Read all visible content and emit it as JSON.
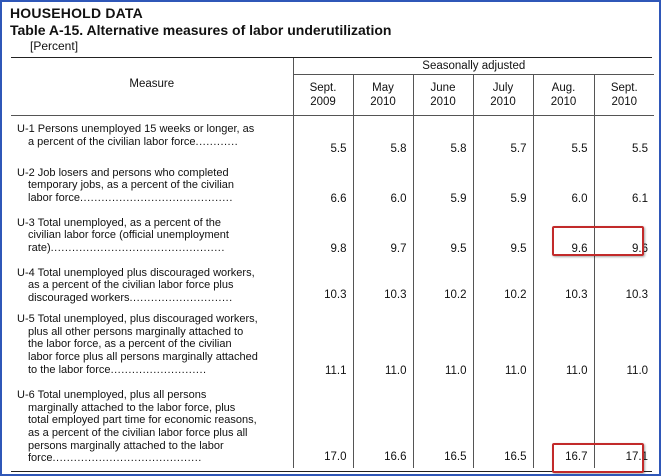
{
  "header": {
    "title": "HOUSEHOLD DATA",
    "subtitle": "Table A-15. Alternative measures of labor underutilization",
    "unit": "[Percent]"
  },
  "table": {
    "measure_header": "Measure",
    "group_header": "Seasonally adjusted",
    "columns": [
      {
        "month": "Sept.",
        "year": "2009"
      },
      {
        "month": "May",
        "year": "2010"
      },
      {
        "month": "June",
        "year": "2010"
      },
      {
        "month": "July",
        "year": "2010"
      },
      {
        "month": "Aug.",
        "year": "2010"
      },
      {
        "month": "Sept.",
        "year": "2010"
      }
    ],
    "rows": [
      {
        "lines": [
          "U-1 Persons unemployed 15 weeks or longer, as",
          "a percent of the civilian labor force"
        ],
        "dots": "............",
        "values": [
          "5.5",
          "5.8",
          "5.8",
          "5.7",
          "5.5",
          "5.5"
        ]
      },
      {
        "lines": [
          "U-2 Job losers and persons who completed",
          "temporary jobs, as a percent of the civilian",
          "labor force"
        ],
        "dots": "...........................................",
        "values": [
          "6.6",
          "6.0",
          "5.9",
          "5.9",
          "6.0",
          "6.1"
        ]
      },
      {
        "lines": [
          "U-3 Total unemployed, as a percent of the",
          "civilian labor force (official unemployment",
          "rate)"
        ],
        "dots": ".................................................",
        "values": [
          "9.8",
          "9.7",
          "9.5",
          "9.5",
          "9.6",
          "9.6"
        ]
      },
      {
        "lines": [
          "U-4 Total unemployed plus discouraged workers,",
          "as a percent of the civilian labor force plus",
          "discouraged workers"
        ],
        "dots": ".............................",
        "values": [
          "10.3",
          "10.3",
          "10.2",
          "10.2",
          "10.3",
          "10.3"
        ]
      },
      {
        "lines": [
          "U-5 Total unemployed, plus discouraged workers,",
          "plus all other persons marginally attached to",
          "the labor force, as a percent of the civilian",
          "labor force plus all persons marginally attached",
          "to the labor force"
        ],
        "dots": "...........................",
        "values": [
          "11.1",
          "11.0",
          "11.0",
          "11.0",
          "11.0",
          "11.0"
        ]
      },
      {
        "lines": [
          "U-6 Total unemployed, plus all persons",
          "marginally attached to the labor force, plus",
          "total employed part time for economic reasons,",
          "as a percent of the civilian labor force plus all",
          "persons marginally attached to the labor",
          "force"
        ],
        "dots": "..........................................",
        "values": [
          "17.0",
          "16.6",
          "16.5",
          "16.5",
          "16.7",
          "17.1"
        ]
      }
    ]
  },
  "highlight_color": "#c22a2a"
}
